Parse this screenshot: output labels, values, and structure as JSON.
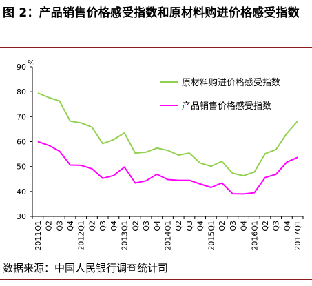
{
  "figure": {
    "title": "图 2：产品销售价格感受指数和原材料购进价格感受指数",
    "source": "数据来源：中国人民银行调查统计司"
  },
  "chart_data": {
    "type": "line",
    "x": [
      "2011Q1",
      "Q2",
      "Q3",
      "Q4",
      "2012Q1",
      "Q2",
      "Q3",
      "Q4",
      "2013Q1",
      "Q2",
      "Q3",
      "Q4",
      "2014Q1",
      "Q2",
      "Q3",
      "Q4",
      "2015Q1",
      "Q2",
      "Q3",
      "Q4",
      "2016Q1",
      "Q2",
      "Q3",
      "Q4",
      "2017Q1"
    ],
    "ylim": [
      30,
      90
    ],
    "yticks": [
      30,
      40,
      50,
      60,
      70,
      80,
      90
    ],
    "yunit": "%",
    "series": [
      {
        "name": "原材料购进价格感受指数",
        "color": "#92d050",
        "values": [
          79.5,
          77.7,
          76.3,
          68.2,
          67.5,
          65.8,
          59.2,
          60.8,
          63.5,
          55.4,
          55.8,
          57.4,
          56.5,
          54.6,
          55.4,
          51.4,
          50.1,
          52.1,
          47.3,
          46.3,
          47.8,
          55.2,
          56.8,
          63.3,
          68.2
        ]
      },
      {
        "name": "产品销售价格感受指数",
        "color": "#ff00ff",
        "values": [
          60.0,
          58.5,
          56.2,
          50.6,
          50.5,
          49.1,
          45.3,
          46.4,
          49.8,
          43.4,
          44.3,
          46.9,
          44.8,
          44.5,
          44.5,
          43.0,
          41.6,
          43.4,
          39.1,
          39.0,
          39.5,
          45.6,
          46.9,
          51.8,
          53.7
        ]
      }
    ],
    "legend_position": "top-right"
  }
}
